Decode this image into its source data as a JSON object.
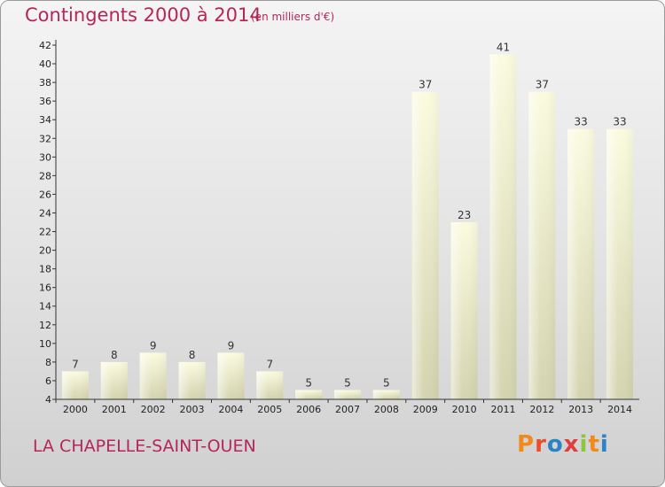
{
  "title": "Contingents 2000 à 2014",
  "subtitle": "(en milliers d'€)",
  "place": "LA CHAPELLE-SAINT-OUEN",
  "logo": {
    "letters": [
      "P",
      "r",
      "o",
      "x",
      "i",
      "t",
      "i"
    ],
    "colors": [
      "#f08a1c",
      "#e94f2b",
      "#2b83c6",
      "#e23d3d",
      "#8cc63f",
      "#f08a1c",
      "#2b83c6"
    ]
  },
  "colors": {
    "title": "#b5265a",
    "bar": "#efefc8"
  },
  "chart_data": {
    "type": "bar",
    "categories": [
      "2000",
      "2001",
      "2002",
      "2003",
      "2004",
      "2005",
      "2006",
      "2007",
      "2008",
      "2009",
      "2010",
      "2011",
      "2012",
      "2013",
      "2014"
    ],
    "values": [
      7,
      8,
      9,
      8,
      9,
      7,
      5,
      5,
      5,
      37,
      23,
      41,
      37,
      33,
      33
    ],
    "ylim": [
      4,
      42
    ],
    "yticks": [
      4,
      6,
      8,
      10,
      12,
      14,
      16,
      18,
      20,
      22,
      24,
      26,
      28,
      30,
      32,
      34,
      36,
      38,
      40,
      42
    ],
    "grid": false,
    "legend": "none"
  }
}
